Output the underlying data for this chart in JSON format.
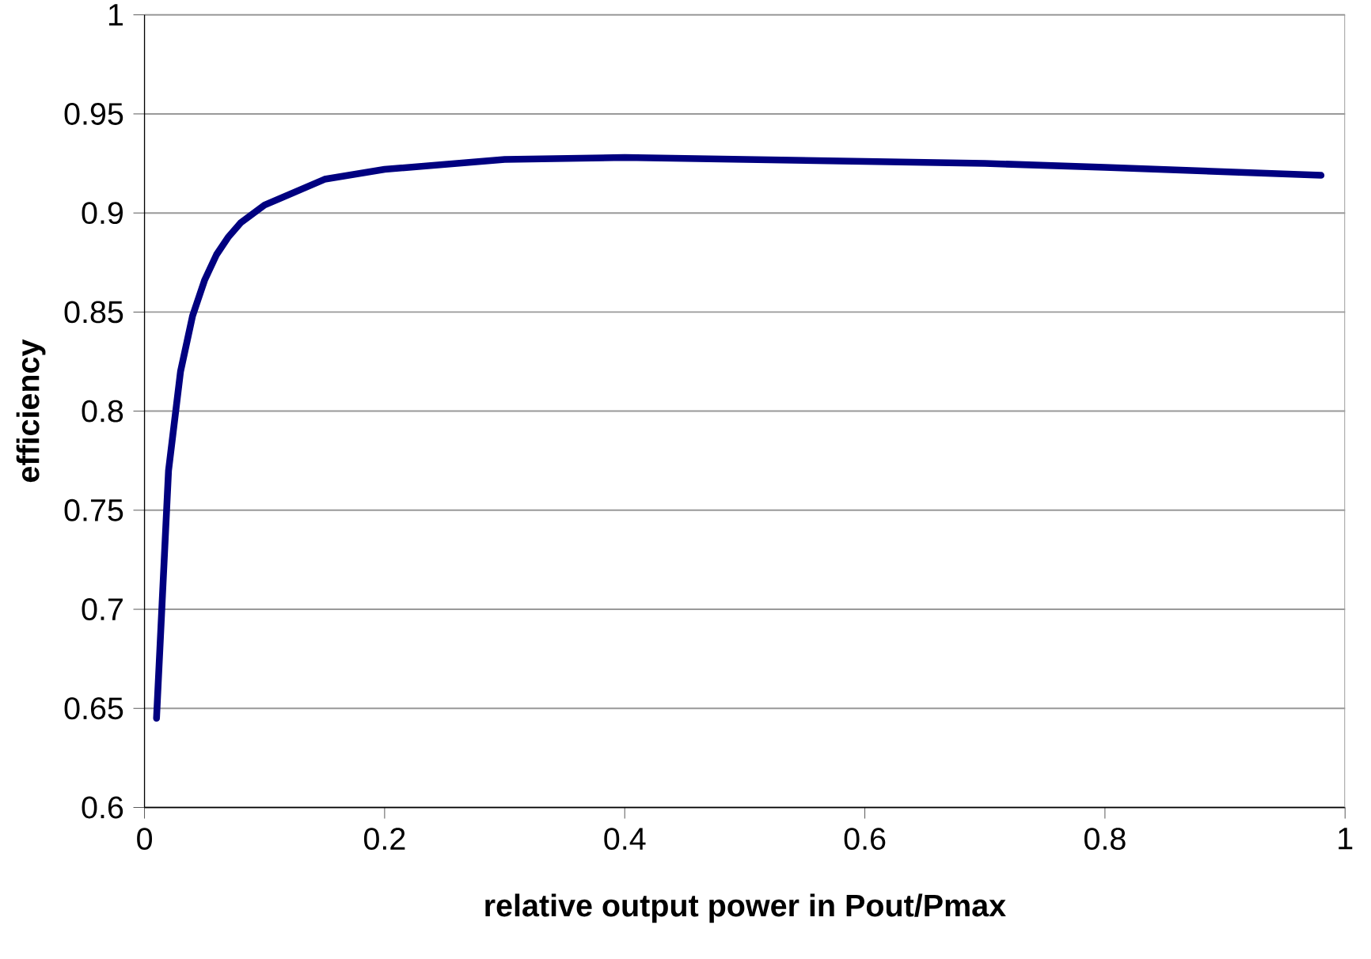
{
  "chart_data": {
    "type": "line",
    "xlabel": "relative output power in Pout/Pmax",
    "ylabel": "efficiency",
    "x": [
      0.01,
      0.02,
      0.03,
      0.04,
      0.05,
      0.06,
      0.07,
      0.08,
      0.1,
      0.15,
      0.2,
      0.3,
      0.4,
      0.5,
      0.6,
      0.7,
      0.8,
      0.98
    ],
    "series": [
      {
        "color": "#000080",
        "values": [
          0.645,
          0.77,
          0.82,
          0.848,
          0.866,
          0.879,
          0.888,
          0.895,
          0.904,
          0.917,
          0.922,
          0.927,
          0.928,
          0.927,
          0.926,
          0.925,
          0.923,
          0.919
        ]
      }
    ],
    "xlim": [
      0,
      1
    ],
    "ylim": [
      0.6,
      1
    ],
    "xticks": [
      0,
      0.2,
      0.4,
      0.6,
      0.8,
      1
    ],
    "yticks": [
      0.6,
      0.65,
      0.7,
      0.75,
      0.8,
      0.85,
      0.9,
      0.95,
      1
    ],
    "grid": "y",
    "marker": "none",
    "line_style": "solid"
  }
}
